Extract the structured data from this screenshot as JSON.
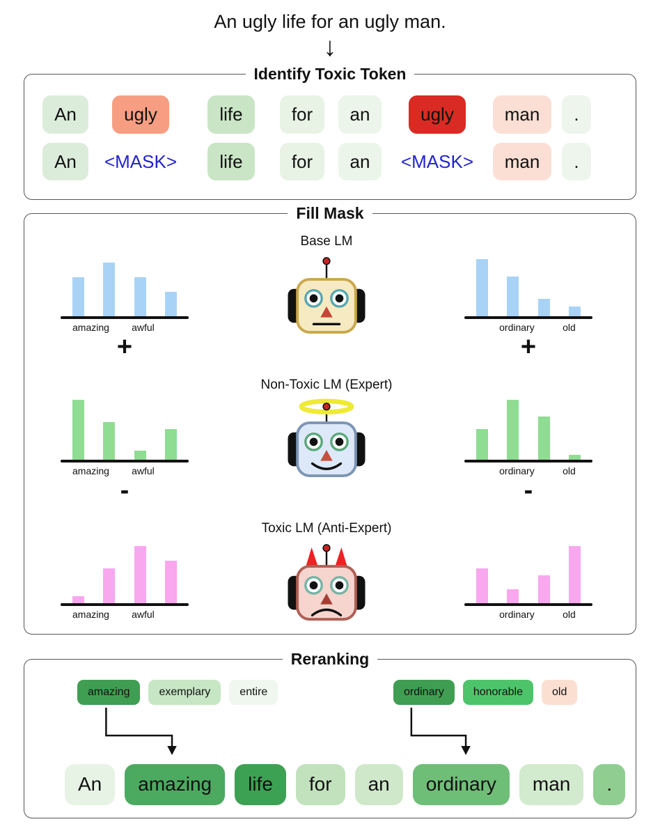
{
  "header": {
    "sentence": "An ugly life for an ugly man.",
    "arrow_icon": "↓"
  },
  "identify_box": {
    "title": "Identify Toxic Token",
    "rows": [
      {
        "tokens": [
          {
            "text": "An",
            "bg": "#dcecdb"
          },
          {
            "text": "ugly",
            "bg": "#f79e82"
          },
          {
            "text": "life",
            "bg": "#c9e5c5"
          },
          {
            "text": "for",
            "bg": "#e8f3e6"
          },
          {
            "text": "an",
            "bg": "#ecf5ea"
          },
          {
            "text": "ugly",
            "bg": "#d92b23"
          },
          {
            "text": "man",
            "bg": "#fbdfd5"
          },
          {
            "text": ".",
            "bg": "#edf5ec"
          }
        ]
      },
      {
        "tokens": [
          {
            "text": "An",
            "bg": "#dcecdb"
          },
          {
            "text": "<MASK>",
            "kind": "mask",
            "color": "#2323cd"
          },
          {
            "text": "life",
            "bg": "#c9e5c5"
          },
          {
            "text": "for",
            "bg": "#e8f3e6"
          },
          {
            "text": "an",
            "bg": "#ecf5ea"
          },
          {
            "text": "<MASK>",
            "kind": "mask",
            "color": "#2323cd"
          },
          {
            "text": "man",
            "bg": "#fbdfd5"
          },
          {
            "text": ".",
            "bg": "#edf5ec"
          }
        ]
      }
    ]
  },
  "fill_mask_box": {
    "title": "Fill Mask",
    "plus_label": "+",
    "minus_label": "-",
    "robots": [
      {
        "label": "Base LM"
      },
      {
        "label": "Non-Toxic LM (Expert)"
      },
      {
        "label": "Toxic LM (Anti-Expert)"
      }
    ]
  },
  "chart_data": [
    {
      "type": "bar",
      "id": "base-lm-mask1",
      "model": "Base LM",
      "mask": "left",
      "color": "#a8d3f7",
      "values": [
        56,
        77,
        56,
        35
      ],
      "tick_labels": [
        {
          "bar": 0,
          "text": "amazing"
        },
        {
          "bar": 2,
          "text": "awful"
        }
      ],
      "title": "",
      "xlabel": "",
      "ylabel": "",
      "axis": "x-only, unlabeled probability heights"
    },
    {
      "type": "bar",
      "id": "expert-lm-mask1",
      "model": "Non-Toxic LM (Expert)",
      "mask": "left",
      "color": "#8fdc93",
      "values": [
        86,
        54,
        13,
        44
      ],
      "tick_labels": [
        {
          "bar": 0,
          "text": "amazing"
        },
        {
          "bar": 2,
          "text": "awful"
        }
      ],
      "title": "",
      "xlabel": "",
      "ylabel": "",
      "axis": "x-only, unlabeled probability heights"
    },
    {
      "type": "bar",
      "id": "antiexpert-lm-mask1",
      "model": "Toxic LM (Anti-Expert)",
      "mask": "left",
      "color": "#f9a7ee",
      "values": [
        10,
        50,
        82,
        61
      ],
      "tick_labels": [
        {
          "bar": 0,
          "text": "amazing"
        },
        {
          "bar": 2,
          "text": "awful"
        }
      ],
      "title": "",
      "xlabel": "",
      "ylabel": "",
      "axis": "x-only, unlabeled probability heights"
    },
    {
      "type": "bar",
      "id": "base-lm-mask2",
      "model": "Base LM",
      "mask": "right",
      "color": "#a8d3f7",
      "values": [
        82,
        57,
        25,
        14
      ],
      "tick_labels": [
        {
          "bar": 1,
          "text": "ordinary"
        },
        {
          "bar": 3,
          "text": "old"
        }
      ],
      "title": "",
      "xlabel": "",
      "ylabel": "",
      "axis": "x-only, unlabeled probability heights"
    },
    {
      "type": "bar",
      "id": "expert-lm-mask2",
      "model": "Non-Toxic LM (Expert)",
      "mask": "right",
      "color": "#8fdc93",
      "values": [
        44,
        86,
        62,
        7
      ],
      "tick_labels": [
        {
          "bar": 1,
          "text": "ordinary"
        },
        {
          "bar": 3,
          "text": "old"
        }
      ],
      "title": "",
      "xlabel": "",
      "ylabel": "",
      "axis": "x-only, unlabeled probability heights"
    },
    {
      "type": "bar",
      "id": "antiexpert-lm-mask2",
      "model": "Toxic LM (Anti-Expert)",
      "mask": "right",
      "color": "#f9a7ee",
      "values": [
        50,
        20,
        40,
        82
      ],
      "tick_labels": [
        {
          "bar": 1,
          "text": "ordinary"
        },
        {
          "bar": 3,
          "text": "old"
        }
      ],
      "title": "",
      "xlabel": "",
      "ylabel": "",
      "axis": "x-only, unlabeled probability heights"
    }
  ],
  "reranking_box": {
    "title": "Reranking",
    "left_candidates": [
      {
        "text": "amazing",
        "bg": "#3f9e52"
      },
      {
        "text": "exemplary",
        "bg": "#c6e6c4"
      },
      {
        "text": "entire",
        "bg": "#eff7ee"
      }
    ],
    "right_candidates": [
      {
        "text": "ordinary",
        "bg": "#3f9e52"
      },
      {
        "text": "honorable",
        "bg": "#4ec46a"
      },
      {
        "text": "old",
        "bg": "#fbe0d1"
      }
    ],
    "final_tokens": [
      {
        "text": "An",
        "bg": "#e7f3e5"
      },
      {
        "text": "amazing",
        "bg": "#4caa60"
      },
      {
        "text": "life",
        "bg": "#3da153"
      },
      {
        "text": "for",
        "bg": "#c2e2bd"
      },
      {
        "text": "an",
        "bg": "#cfe8ca"
      },
      {
        "text": "ordinary",
        "bg": "#6fbe78"
      },
      {
        "text": "man",
        "bg": "#d2eace"
      },
      {
        "text": ".",
        "bg": "#8fce90"
      }
    ]
  }
}
